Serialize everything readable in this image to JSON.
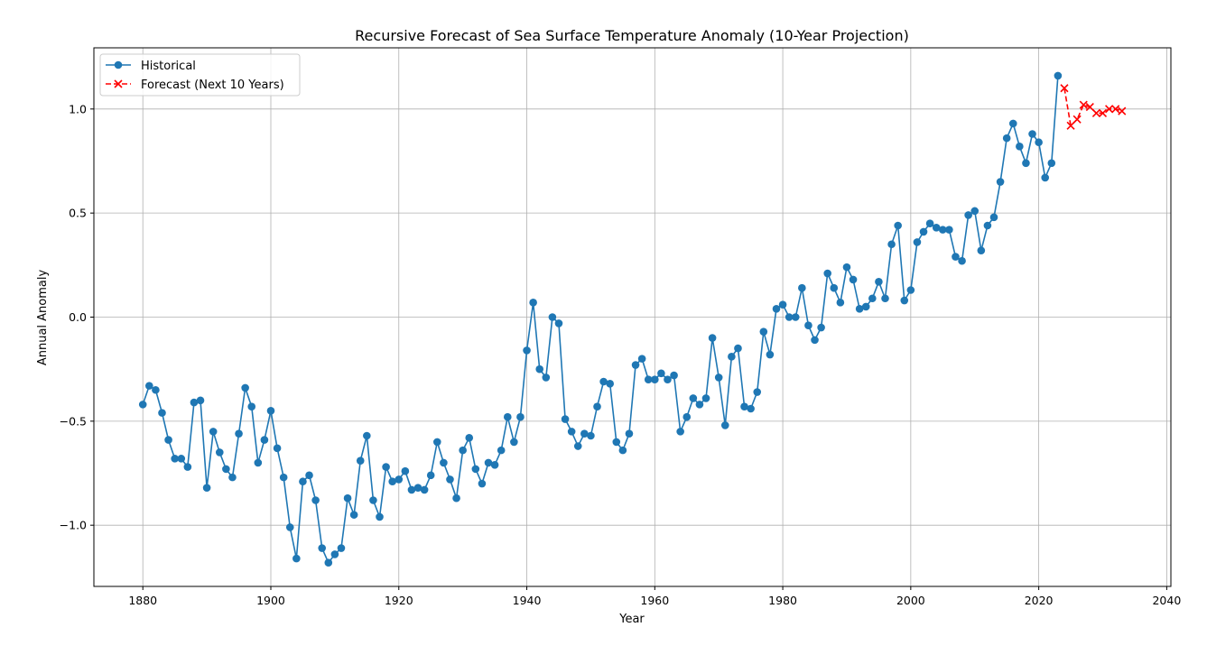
{
  "chart_data": {
    "type": "line",
    "title": "Recursive Forecast of Sea Surface Temperature Anomaly (10-Year Projection)",
    "xlabel": "Year",
    "ylabel": "Annual Anomaly",
    "xlim": [
      1872.35,
      2040.65
    ],
    "ylim": [
      -1.294,
      1.294
    ],
    "xticks": [
      1880,
      1900,
      1920,
      1940,
      1960,
      1980,
      2000,
      2020,
      2040
    ],
    "yticks": [
      -1.0,
      -0.5,
      0.0,
      0.5,
      1.0
    ],
    "grid": true,
    "legend_position": "upper-left",
    "series": [
      {
        "name": "Historical",
        "color": "#1f77b4",
        "marker": "circle",
        "line": "solid",
        "x_start": 1880,
        "values": [
          -0.42,
          -0.33,
          -0.35,
          -0.46,
          -0.59,
          -0.68,
          -0.68,
          -0.72,
          -0.41,
          -0.4,
          -0.82,
          -0.55,
          -0.65,
          -0.73,
          -0.77,
          -0.56,
          -0.34,
          -0.43,
          -0.7,
          -0.59,
          -0.45,
          -0.63,
          -0.77,
          -1.01,
          -1.16,
          -0.79,
          -0.76,
          -0.88,
          -1.11,
          -1.18,
          -1.14,
          -1.11,
          -0.87,
          -0.95,
          -0.69,
          -0.57,
          -0.88,
          -0.96,
          -0.72,
          -0.79,
          -0.78,
          -0.74,
          -0.83,
          -0.82,
          -0.83,
          -0.76,
          -0.6,
          -0.7,
          -0.78,
          -0.87,
          -0.64,
          -0.58,
          -0.73,
          -0.8,
          -0.7,
          -0.71,
          -0.64,
          -0.48,
          -0.6,
          -0.48,
          -0.16,
          0.07,
          -0.25,
          -0.29,
          0.0,
          -0.03,
          -0.49,
          -0.55,
          -0.62,
          -0.56,
          -0.57,
          -0.43,
          -0.31,
          -0.32,
          -0.6,
          -0.64,
          -0.56,
          -0.23,
          -0.2,
          -0.3,
          -0.3,
          -0.27,
          -0.3,
          -0.28,
          -0.55,
          -0.48,
          -0.39,
          -0.42,
          -0.39,
          -0.1,
          -0.29,
          -0.52,
          -0.19,
          -0.15,
          -0.43,
          -0.44,
          -0.36,
          -0.07,
          -0.18,
          0.04,
          0.06,
          0.0,
          0.0,
          0.14,
          -0.04,
          -0.11,
          -0.05,
          0.21,
          0.14,
          0.07,
          0.24,
          0.18,
          0.04,
          0.05,
          0.09,
          0.17,
          0.09,
          0.35,
          0.44,
          0.08,
          0.13,
          0.36,
          0.41,
          0.45,
          0.43,
          0.42,
          0.42,
          0.29,
          0.27,
          0.49,
          0.51,
          0.32,
          0.44,
          0.48,
          0.65,
          0.86,
          0.93,
          0.82,
          0.74,
          0.88,
          0.84,
          0.67,
          0.74,
          1.16
        ]
      },
      {
        "name": "Forecast (Next 10 Years)",
        "color": "#ff0000",
        "marker": "x",
        "line": "dashed",
        "x_start": 2024,
        "values": [
          1.1,
          0.92,
          0.95,
          1.02,
          1.01,
          0.98,
          0.98,
          1.0,
          1.0,
          0.99
        ]
      }
    ]
  }
}
